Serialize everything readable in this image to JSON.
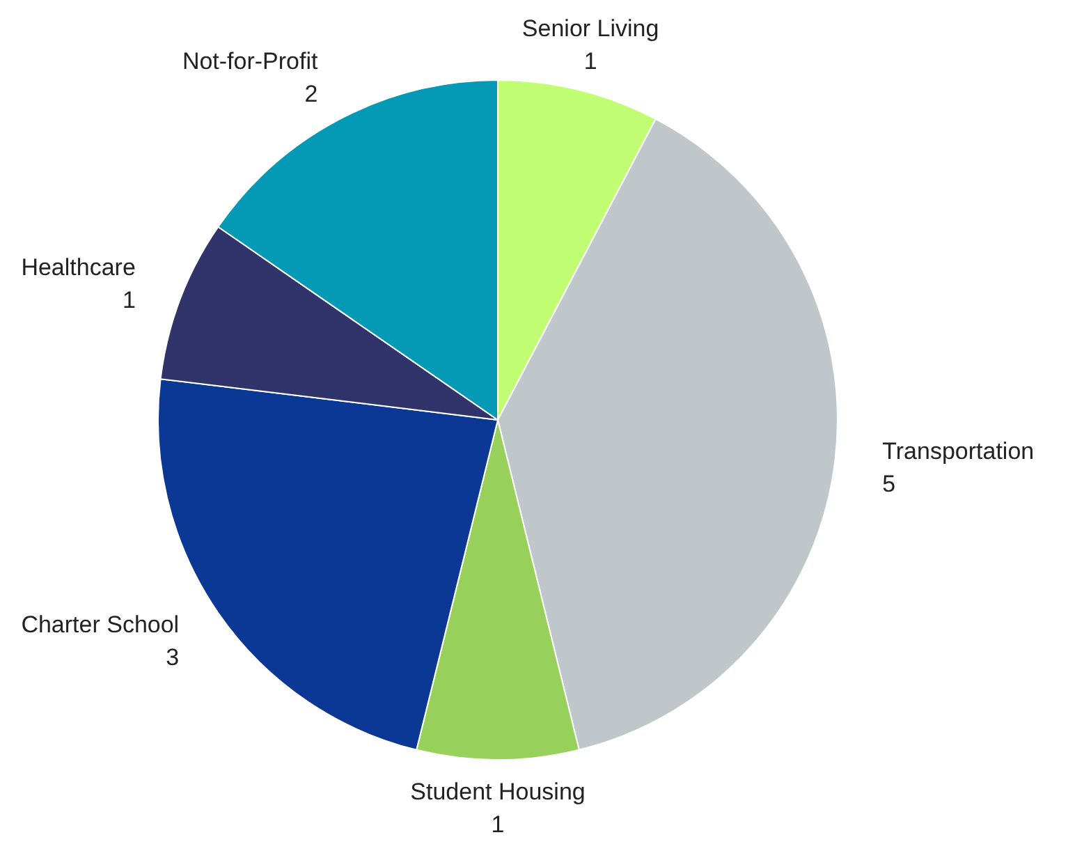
{
  "chart_data": {
    "type": "pie",
    "categories": [
      "Senior Living",
      "Transportation",
      "Student Housing",
      "Charter School",
      "Healthcare",
      "Not-for-Profit"
    ],
    "values": [
      1,
      5,
      1,
      3,
      1,
      2
    ],
    "colors": [
      "#c1fd73",
      "#c0c7ca",
      "#98d05c",
      "#0a3894",
      "#31346b",
      "#0499b5"
    ],
    "data_labels": true,
    "legend": false
  }
}
